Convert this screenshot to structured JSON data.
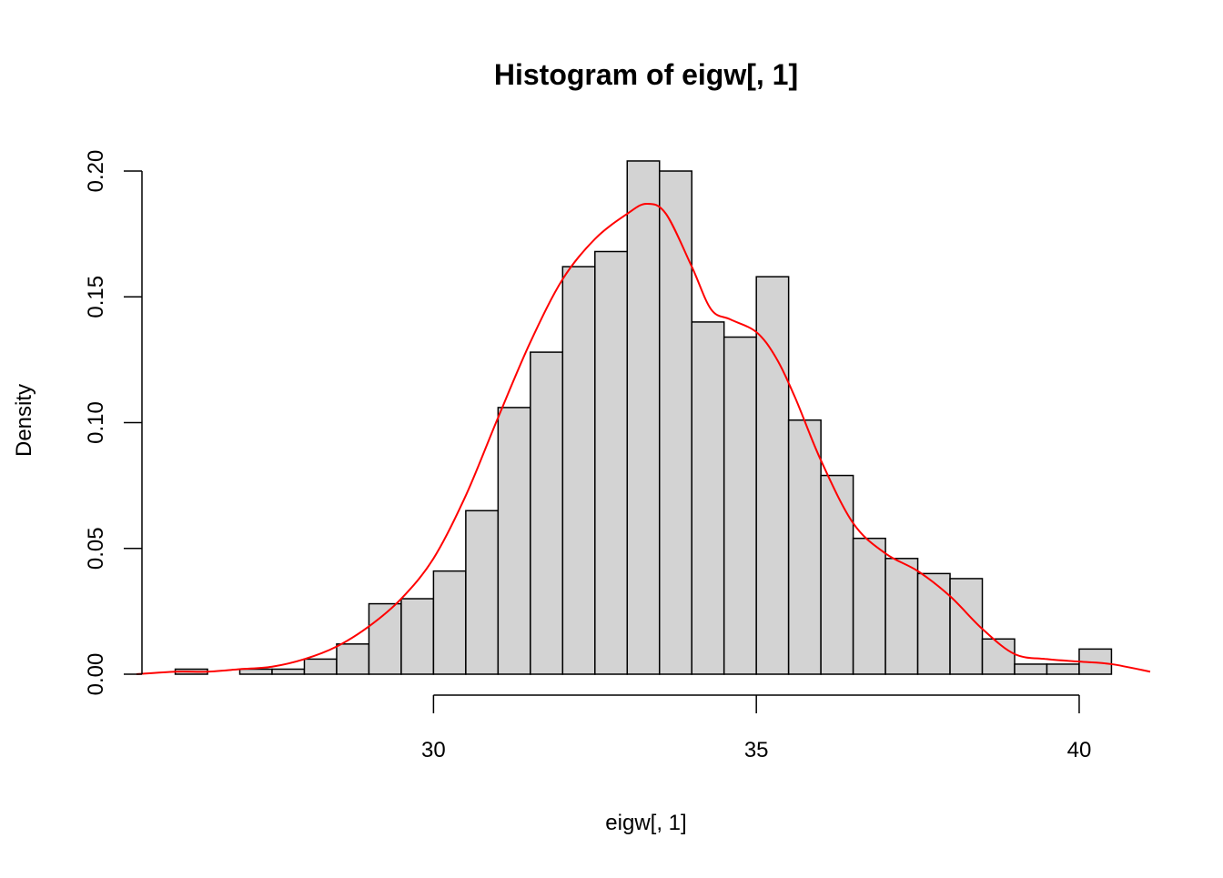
{
  "chart_data": {
    "type": "bar",
    "title": "Histogram of eigw[, 1]",
    "xlabel": "eigw[, 1]",
    "ylabel": "Density",
    "xlim": [
      25.4,
      41.1
    ],
    "ylim": [
      0,
      0.2
    ],
    "x_ticks": [
      "30",
      "35",
      "40"
    ],
    "x_tick_values": [
      30,
      35,
      40
    ],
    "y_ticks": [
      "0.00",
      "0.05",
      "0.10",
      "0.15",
      "0.20"
    ],
    "y_tick_values": [
      0,
      0.05,
      0.1,
      0.15,
      0.2
    ],
    "bin_width": 0.5,
    "bins": [
      {
        "x0": 26.0,
        "x1": 26.5,
        "density": 0.002
      },
      {
        "x0": 26.5,
        "x1": 27.0,
        "density": 0.0
      },
      {
        "x0": 27.0,
        "x1": 27.5,
        "density": 0.002
      },
      {
        "x0": 27.5,
        "x1": 28.0,
        "density": 0.002
      },
      {
        "x0": 28.0,
        "x1": 28.5,
        "density": 0.006
      },
      {
        "x0": 28.5,
        "x1": 29.0,
        "density": 0.012
      },
      {
        "x0": 29.0,
        "x1": 29.5,
        "density": 0.028
      },
      {
        "x0": 29.5,
        "x1": 30.0,
        "density": 0.03
      },
      {
        "x0": 30.0,
        "x1": 30.5,
        "density": 0.041
      },
      {
        "x0": 30.5,
        "x1": 31.0,
        "density": 0.065
      },
      {
        "x0": 31.0,
        "x1": 31.5,
        "density": 0.106
      },
      {
        "x0": 31.5,
        "x1": 32.0,
        "density": 0.128
      },
      {
        "x0": 32.0,
        "x1": 32.5,
        "density": 0.162
      },
      {
        "x0": 32.5,
        "x1": 33.0,
        "density": 0.168
      },
      {
        "x0": 33.0,
        "x1": 33.5,
        "density": 0.204
      },
      {
        "x0": 33.5,
        "x1": 34.0,
        "density": 0.2
      },
      {
        "x0": 34.0,
        "x1": 34.5,
        "density": 0.14
      },
      {
        "x0": 34.5,
        "x1": 35.0,
        "density": 0.134
      },
      {
        "x0": 35.0,
        "x1": 35.5,
        "density": 0.158
      },
      {
        "x0": 35.5,
        "x1": 36.0,
        "density": 0.101
      },
      {
        "x0": 36.0,
        "x1": 36.5,
        "density": 0.079
      },
      {
        "x0": 36.5,
        "x1": 37.0,
        "density": 0.054
      },
      {
        "x0": 37.0,
        "x1": 37.5,
        "density": 0.046
      },
      {
        "x0": 37.5,
        "x1": 38.0,
        "density": 0.04
      },
      {
        "x0": 38.0,
        "x1": 38.5,
        "density": 0.038
      },
      {
        "x0": 38.5,
        "x1": 39.0,
        "density": 0.014
      },
      {
        "x0": 39.0,
        "x1": 39.5,
        "density": 0.004
      },
      {
        "x0": 39.5,
        "x1": 40.0,
        "density": 0.004
      },
      {
        "x0": 40.0,
        "x1": 40.5,
        "density": 0.01
      }
    ],
    "density_curve": {
      "color": "#ff0000",
      "x": [
        25.4,
        26.0,
        26.5,
        27.0,
        27.5,
        28.0,
        28.5,
        29.0,
        29.5,
        30.0,
        30.5,
        31.0,
        31.5,
        32.0,
        32.5,
        33.0,
        33.3,
        33.6,
        34.0,
        34.3,
        34.6,
        35.0,
        35.3,
        35.6,
        36.0,
        36.5,
        37.0,
        37.5,
        38.0,
        38.5,
        39.0,
        39.5,
        40.0,
        40.5,
        41.1
      ],
      "y": [
        0.0,
        0.001,
        0.001,
        0.002,
        0.003,
        0.006,
        0.011,
        0.019,
        0.03,
        0.046,
        0.071,
        0.102,
        0.132,
        0.157,
        0.173,
        0.183,
        0.187,
        0.183,
        0.162,
        0.145,
        0.141,
        0.136,
        0.126,
        0.11,
        0.085,
        0.06,
        0.048,
        0.041,
        0.031,
        0.018,
        0.008,
        0.006,
        0.005,
        0.004,
        0.001
      ]
    },
    "bar_fill": "#d3d3d3",
    "bar_stroke": "#000000",
    "grid": false,
    "legend": "none"
  }
}
